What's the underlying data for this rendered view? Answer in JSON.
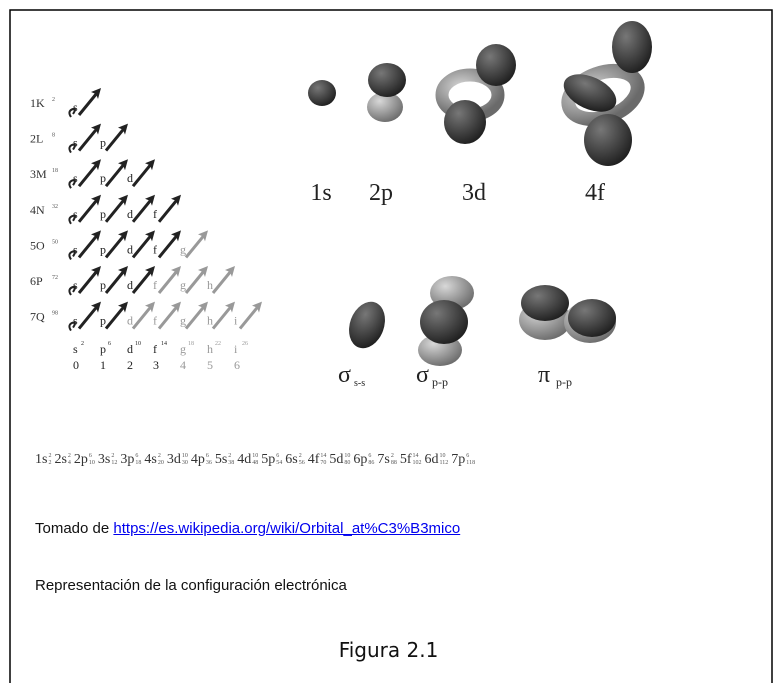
{
  "shells": [
    {
      "label": "1K",
      "capacity": 2,
      "subshells": [
        "s"
      ]
    },
    {
      "label": "2L",
      "capacity": 8,
      "subshells": [
        "s",
        "p"
      ]
    },
    {
      "label": "3M",
      "capacity": 18,
      "subshells": [
        "s",
        "p",
        "d"
      ]
    },
    {
      "label": "4N",
      "capacity": 32,
      "subshells": [
        "s",
        "p",
        "d",
        "f"
      ]
    },
    {
      "label": "5O",
      "capacity": 50,
      "subshells": [
        "s",
        "p",
        "d",
        "f",
        "g"
      ]
    },
    {
      "label": "6P",
      "capacity": 72,
      "subshells": [
        "s",
        "p",
        "d",
        "f",
        "g",
        "h"
      ]
    },
    {
      "label": "7Q",
      "capacity": 98,
      "subshells": [
        "s",
        "p",
        "d",
        "f",
        "g",
        "h",
        "i"
      ]
    }
  ],
  "subshell_totals": [
    {
      "letter": "s",
      "electrons": 2,
      "l": 0
    },
    {
      "letter": "p",
      "electrons": 6,
      "l": 1
    },
    {
      "letter": "d",
      "electrons": 10,
      "l": 2
    },
    {
      "letter": "f",
      "electrons": 14,
      "l": 3
    },
    {
      "letter": "g",
      "electrons": 18,
      "l": 4
    },
    {
      "letter": "h",
      "electrons": 22,
      "l": 5
    },
    {
      "letter": "i",
      "electrons": 26,
      "l": 6
    }
  ],
  "orbitals": [
    "1s",
    "2p",
    "3d",
    "4f"
  ],
  "bonds": [
    {
      "symbol": "σ",
      "sub": "s-s"
    },
    {
      "symbol": "σ",
      "sub": "p-p"
    },
    {
      "symbol": "π",
      "sub": "p-p"
    }
  ],
  "configuration": [
    {
      "orbital": "1s",
      "electrons": 2,
      "total": 2
    },
    {
      "orbital": "2s",
      "electrons": 2,
      "total": 4
    },
    {
      "orbital": "2p",
      "electrons": 6,
      "total": 10
    },
    {
      "orbital": "3s",
      "electrons": 2,
      "total": 12
    },
    {
      "orbital": "3p",
      "electrons": 6,
      "total": 18
    },
    {
      "orbital": "4s",
      "electrons": 2,
      "total": 20
    },
    {
      "orbital": "3d",
      "electrons": 10,
      "total": 30
    },
    {
      "orbital": "4p",
      "electrons": 6,
      "total": 36
    },
    {
      "orbital": "5s",
      "electrons": 2,
      "total": 38
    },
    {
      "orbital": "4d",
      "electrons": 10,
      "total": 48
    },
    {
      "orbital": "5p",
      "electrons": 6,
      "total": 54
    },
    {
      "orbital": "6s",
      "electrons": 2,
      "total": 56
    },
    {
      "orbital": "4f",
      "electrons": 14,
      "total": 70
    },
    {
      "orbital": "5d",
      "electrons": 10,
      "total": 80
    },
    {
      "orbital": "6p",
      "electrons": 6,
      "total": 86
    },
    {
      "orbital": "7s",
      "electrons": 2,
      "total": 88
    },
    {
      "orbital": "5f",
      "electrons": 14,
      "total": 102
    },
    {
      "orbital": "6d",
      "electrons": 10,
      "total": 112
    },
    {
      "orbital": "7p",
      "electrons": 6,
      "total": 118
    }
  ],
  "source": {
    "prefix": "Tomado de",
    "link": "https://es.wikipedia.org/wiki/Orbital_at%C3%B3mico"
  },
  "caption": "Representación de la configuración electrónica",
  "figure": "Figura 2.1"
}
